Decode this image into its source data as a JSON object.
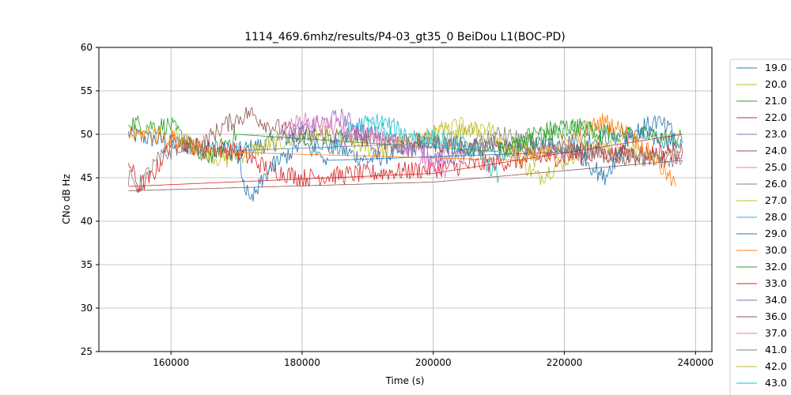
{
  "chart_data": {
    "type": "line",
    "title": "1114_469.6mhz/results/P4-03_gt35_0 BeiDou L1(BOC-PD)",
    "xlabel": "Time (s)",
    "ylabel": "CNo dB Hz",
    "xlim": [
      149000,
      242500
    ],
    "ylim": [
      25,
      60
    ],
    "xticks": [
      160000,
      180000,
      200000,
      220000,
      240000
    ],
    "yticks": [
      25,
      30,
      35,
      40,
      45,
      50,
      55,
      60
    ],
    "grid": true,
    "legend_position": "right",
    "series": [
      {
        "name": "19.0",
        "color": "#1f77b4",
        "x": [
          153500,
          160000,
          170000,
          180000,
          190000,
          200000,
          210000,
          220000,
          230000,
          238000
        ],
        "y": [
          50,
          49,
          48,
          50,
          47,
          49,
          48,
          49,
          50,
          49
        ]
      },
      {
        "name": "20.0",
        "color": "#bcbd22",
        "x": [
          160000,
          168000,
          176000,
          184000,
          192000,
          200000,
          208000,
          216000,
          224000,
          232000
        ],
        "y": [
          50,
          47,
          49,
          50,
          48,
          50,
          51,
          45,
          49,
          48
        ]
      },
      {
        "name": "21.0",
        "color": "#2ca02c",
        "x": [
          153500,
          156000,
          160000,
          165000,
          170000,
          210000,
          215000,
          220000,
          230000,
          238000
        ],
        "y": [
          51.5,
          51,
          51,
          47,
          50,
          48,
          50,
          51,
          50,
          49.5
        ]
      },
      {
        "name": "22.0",
        "color": "#d62728",
        "x": [
          153500,
          155000,
          157000,
          160000,
          170000,
          175000,
          180000,
          200000,
          220000,
          238000
        ],
        "y": [
          47,
          44,
          45,
          49,
          48,
          46,
          45,
          46,
          47.5,
          48
        ]
      },
      {
        "name": "23.0",
        "color": "#9467bd",
        "x": [
          178000,
          182000,
          186000,
          190000,
          194000,
          198000,
          202000,
          205000
        ],
        "y": [
          50,
          51,
          52,
          50,
          49,
          48,
          47,
          48
        ]
      },
      {
        "name": "24.0",
        "color": "#8c564b",
        "x": [
          165000,
          168000,
          172000,
          175000,
          180000,
          200000,
          225000,
          235000,
          238000
        ],
        "y": [
          49,
          51,
          52.5,
          51,
          50,
          49,
          48,
          47,
          48
        ]
      },
      {
        "name": "25.0",
        "color": "#e377c2",
        "x": [
          176000,
          180000,
          185000,
          190000,
          195000,
          200000,
          202000
        ],
        "y": [
          50,
          51.5,
          51,
          50,
          49,
          47,
          48
        ]
      },
      {
        "name": "26.0",
        "color": "#7f7f7f",
        "x": [
          153500,
          155000,
          158000,
          162000,
          166000,
          200000,
          205000,
          210000,
          215000,
          220000,
          238000
        ],
        "y": [
          45,
          44,
          47,
          49,
          48,
          49,
          48,
          50,
          49,
          48,
          47
        ]
      },
      {
        "name": "27.0",
        "color": "#bcbd22",
        "x": [
          200000,
          204000,
          208000
        ],
        "y": [
          50,
          51,
          50
        ]
      },
      {
        "name": "28.0",
        "color": "#17becf",
        "x": [
          184000,
          188000,
          192000,
          196000,
          200000,
          204000,
          208000,
          210000
        ],
        "y": [
          48,
          51,
          51.5,
          50,
          49.5,
          49,
          47,
          45
        ]
      },
      {
        "name": "29.0",
        "color": "#1f77b4",
        "x": [
          170000,
          172000,
          175000,
          180000,
          184000,
          222000,
          226000,
          230000,
          234000,
          237000
        ],
        "y": [
          48,
          42,
          46,
          49,
          47,
          48,
          45,
          50,
          51.5,
          50
        ]
      },
      {
        "name": "30.0",
        "color": "#ff7f0e",
        "x": [
          153500,
          158000,
          162000,
          166000,
          214000,
          218000,
          222000,
          226000,
          230000,
          234000,
          237000
        ],
        "y": [
          50,
          50,
          49,
          48,
          47,
          48,
          50,
          51.5,
          50,
          47,
          44
        ]
      },
      {
        "name": "32.0",
        "color": "#2ca02c",
        "x": [
          210000,
          214000,
          218000,
          222000,
          226000
        ],
        "y": [
          48,
          49,
          50,
          51,
          50
        ]
      },
      {
        "name": "33.0",
        "color": "#d62728",
        "x": [
          153500,
          200000,
          238000
        ],
        "y": [
          44,
          45.5,
          50
        ]
      },
      {
        "name": "34.0",
        "color": "#9467bd",
        "x": [
          184000,
          188000,
          192000
        ],
        "y": [
          49,
          50,
          48
        ]
      },
      {
        "name": "36.0",
        "color": "#8c564b",
        "x": [
          153500,
          200000,
          238000
        ],
        "y": [
          43.5,
          44.5,
          47
        ]
      },
      {
        "name": "37.0",
        "color": "#e377c2",
        "x": [
          198000,
          202000
        ],
        "y": [
          47,
          46
        ]
      },
      {
        "name": "41.0",
        "color": "#7f7f7f",
        "x": [
          205000,
          210000
        ],
        "y": [
          48,
          49
        ]
      },
      {
        "name": "42.0",
        "color": "#bcbd22",
        "x": [
          212000,
          216000
        ],
        "y": [
          49,
          47
        ]
      },
      {
        "name": "43.0",
        "color": "#17becf",
        "x": [
          190000,
          194000
        ],
        "y": [
          51,
          50
        ]
      }
    ]
  }
}
